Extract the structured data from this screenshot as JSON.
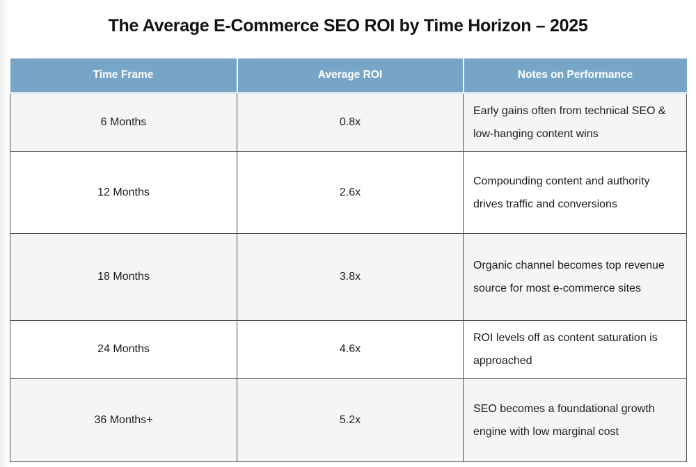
{
  "page": {
    "title": "The Average E-Commerce SEO ROI by Time Horizon – 2025"
  },
  "table": {
    "columns": [
      "Time Frame",
      "Average ROI",
      "Notes on Performance"
    ],
    "rows": [
      {
        "time_frame": "6 Months",
        "average_roi": "0.8x",
        "notes": "Early gains often from technical SEO & low-hanging content wins"
      },
      {
        "time_frame": "12 Months",
        "average_roi": "2.6x",
        "notes": "Compounding content and authority drives traffic and conversions"
      },
      {
        "time_frame": "18 Months",
        "average_roi": "3.8x",
        "notes": "Organic channel becomes top revenue source for most e-commerce sites"
      },
      {
        "time_frame": "24 Months",
        "average_roi": "4.6x",
        "notes": "ROI levels off as content saturation is approached"
      },
      {
        "time_frame": "36 Months+",
        "average_roi": "5.2x",
        "notes": "SEO becomes a foundational growth engine with low marginal cost"
      }
    ]
  },
  "colors": {
    "header_background": "#77a5c8",
    "header_text": "#ffffff",
    "row_stripe": "#f5f5f6",
    "row_white": "#ffffff",
    "border": "#4f4f4f",
    "text": "#1d1d1d"
  },
  "chart_data": {
    "type": "table",
    "title": "The Average E-Commerce SEO ROI by Time Horizon – 2025",
    "columns": [
      "Time Frame",
      "Average ROI",
      "Notes on Performance"
    ],
    "categories": [
      "6 Months",
      "12 Months",
      "18 Months",
      "24 Months",
      "36 Months+"
    ],
    "values": [
      0.8,
      2.6,
      3.8,
      4.6,
      5.2
    ],
    "value_labels": [
      "0.8x",
      "2.6x",
      "3.8x",
      "4.6x",
      "5.2x"
    ],
    "notes": [
      "Early gains often from technical SEO & low-hanging content wins",
      "Compounding content and authority drives traffic and conversions",
      "Organic channel becomes top revenue source for most e-commerce sites",
      "ROI levels off as content saturation is approached",
      "SEO becomes a foundational growth engine with low marginal cost"
    ],
    "layout_hints": {
      "header_style": "steel-blue background, white bold text",
      "row_striping": "odd rows light gray, even rows white",
      "grid": true
    }
  }
}
